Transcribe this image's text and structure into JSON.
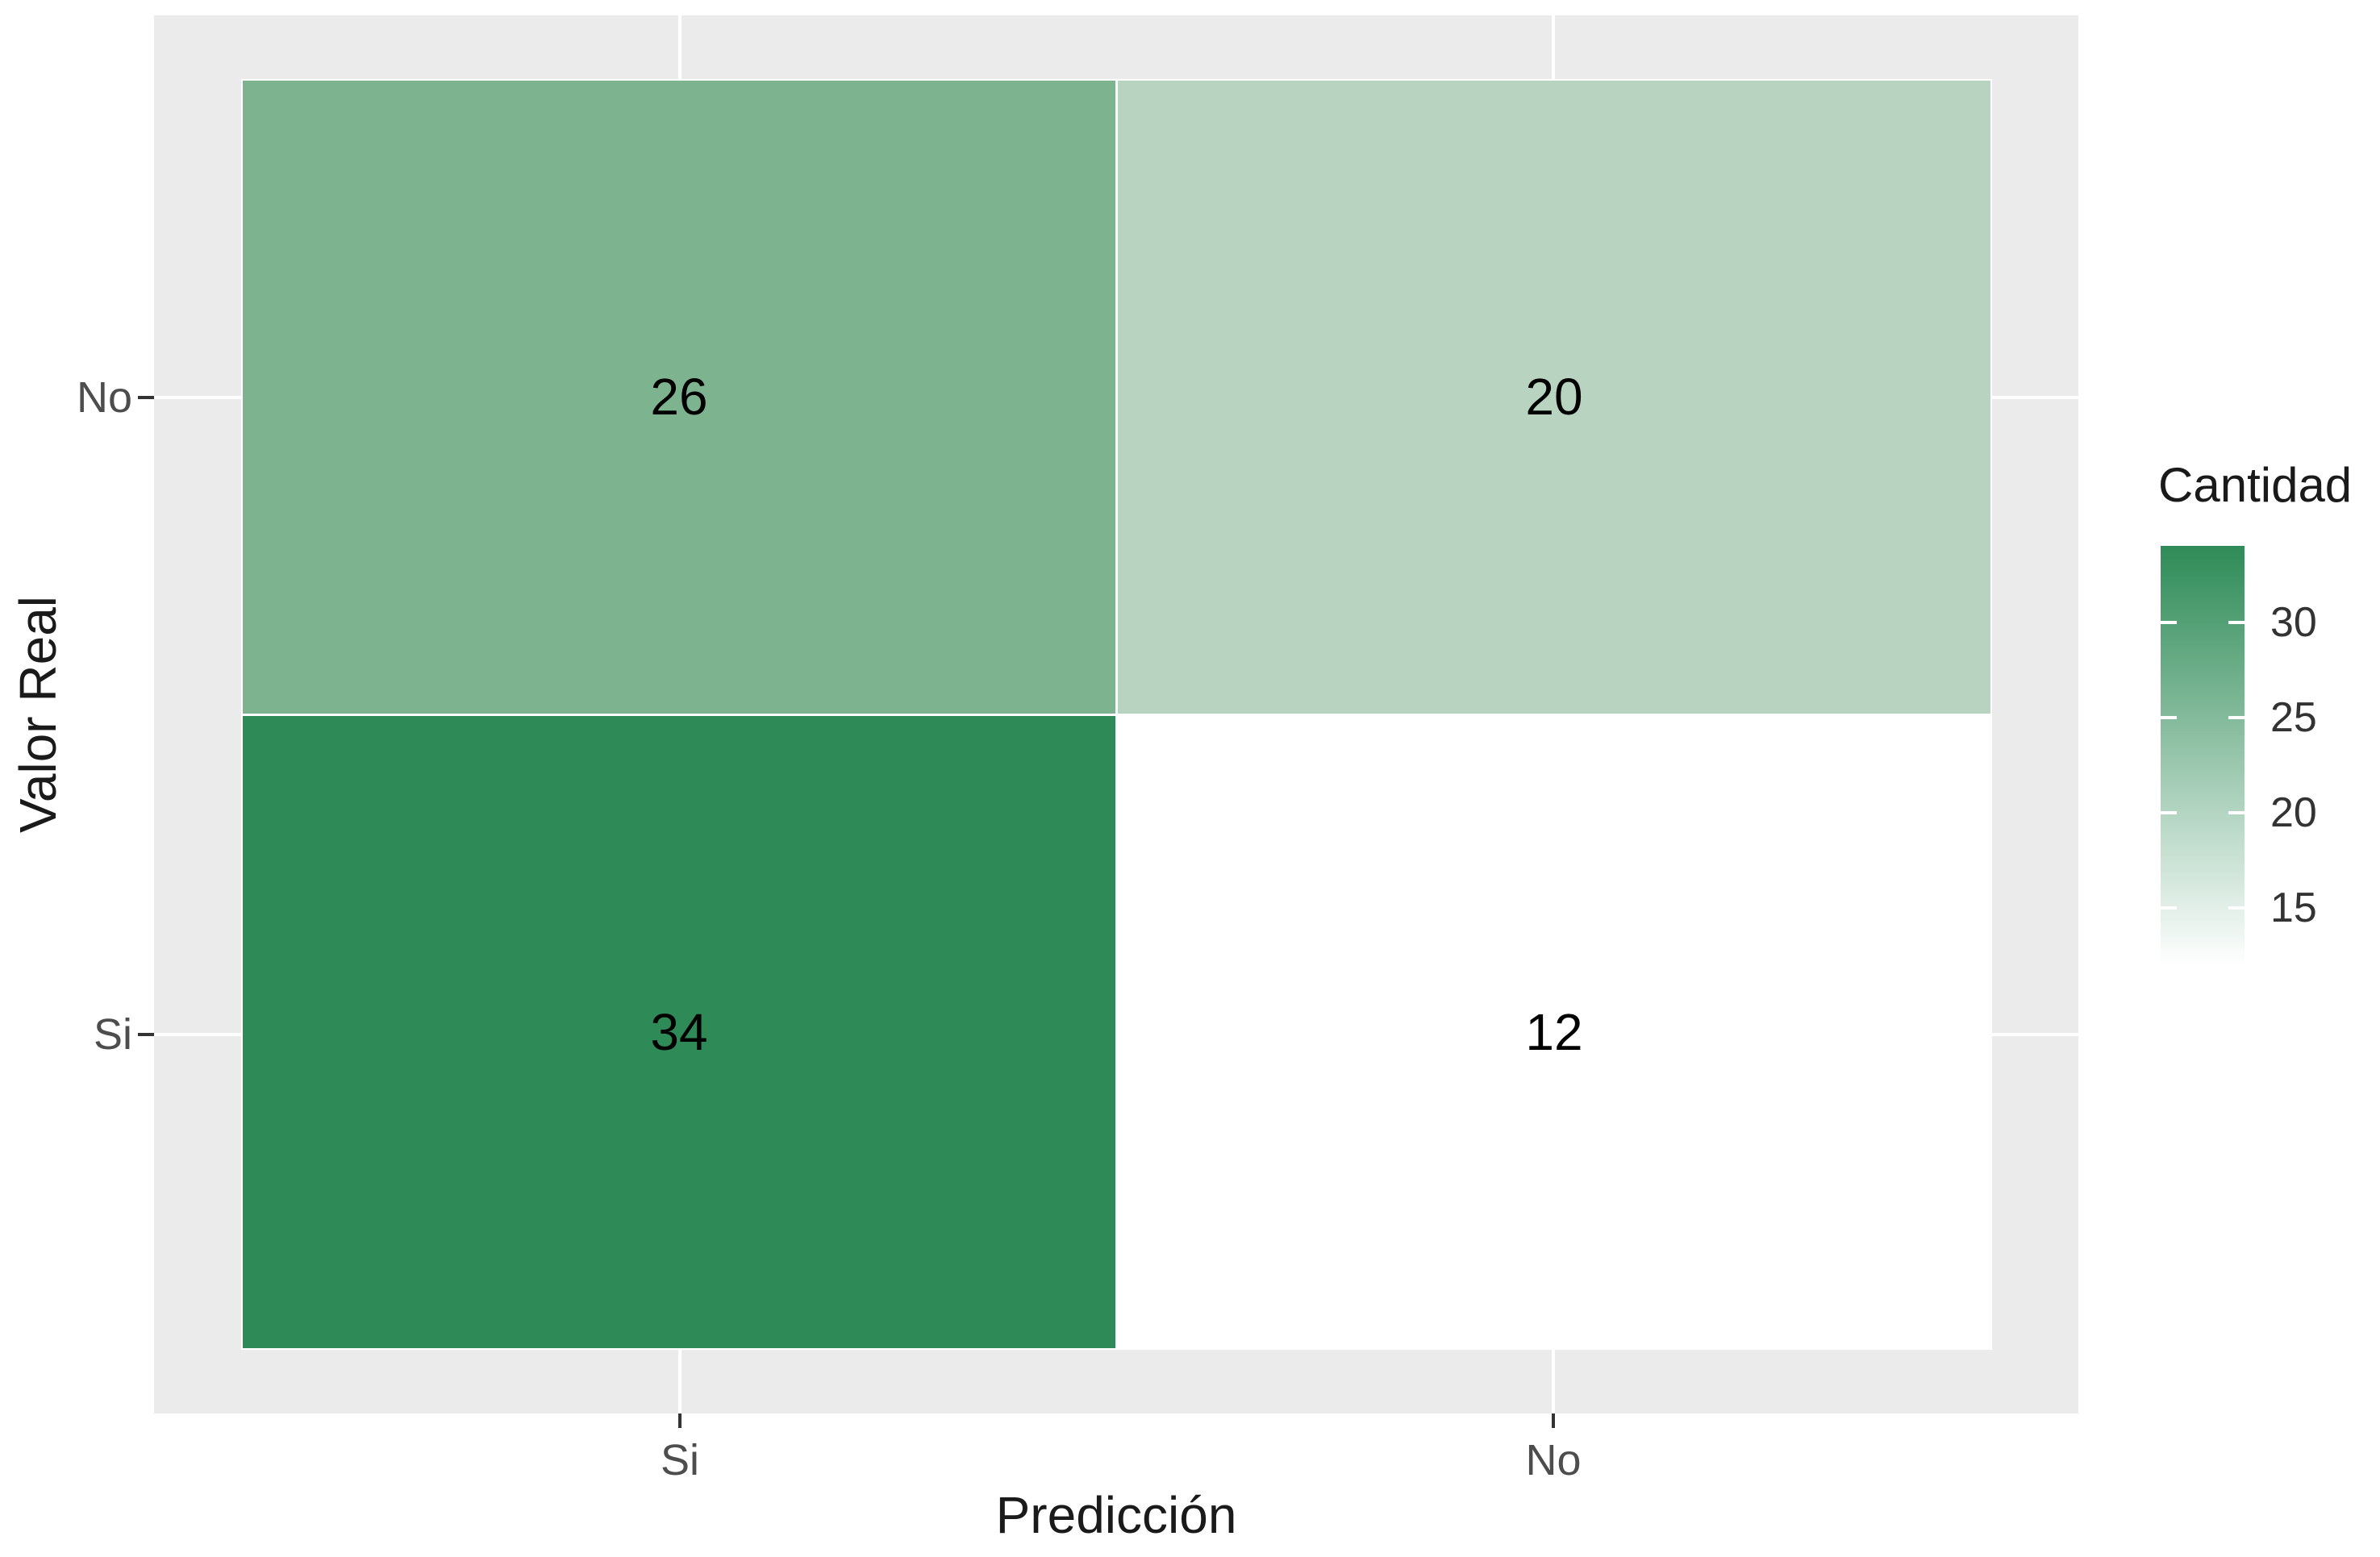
{
  "figure": {
    "background": "#FFFFFF",
    "panel_background": "#EBEBEB",
    "gridline_color": "#FFFFFF",
    "tick_mark_color": "#333333",
    "axis_text_color": "#4D4D4D",
    "title_text_color": "#1A1A1A"
  },
  "chart_data": {
    "type": "heatmap",
    "title": "",
    "xlabel": "Predicción",
    "ylabel": "Valor Real",
    "x_ticks_left_to_right": [
      "Si",
      "No"
    ],
    "y_ticks_top_to_bottom": [
      "No",
      "Si"
    ],
    "grid": "major gridlines visible in panel margins only (tiles cover panel center)",
    "cells": [
      {
        "col": "Si",
        "row": "No",
        "value": 26,
        "fill": "#7EB390"
      },
      {
        "col": "No",
        "row": "No",
        "value": 20,
        "fill": "#B8D4C1"
      },
      {
        "col": "Si",
        "row": "Si",
        "value": 34,
        "fill": "#2E8B57"
      },
      {
        "col": "No",
        "row": "Si",
        "value": 12,
        "fill": "#FFFFFF"
      }
    ],
    "legend": {
      "title": "Cantidad",
      "position": "right",
      "ticks": [
        30,
        25,
        20,
        15
      ],
      "range_min": 12,
      "range_max": 34,
      "color_low": "#FFFFFF",
      "color_high": "#2E8B57"
    }
  }
}
